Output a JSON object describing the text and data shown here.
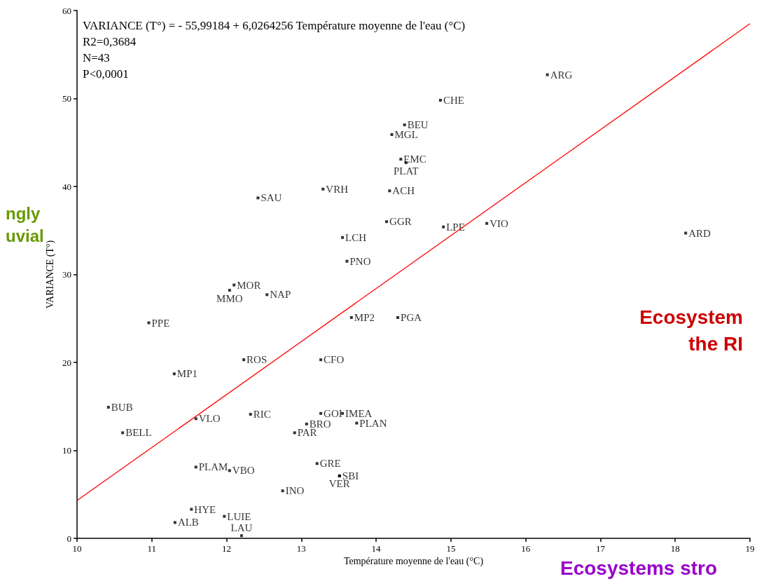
{
  "chart_data": {
    "type": "scatter",
    "xlabel": "Température moyenne de l'eau (°C)",
    "ylabel": "VARIANCE (T°)",
    "xlim": [
      10,
      19
    ],
    "xticks": [
      10,
      11,
      12,
      13,
      14,
      15,
      16,
      17,
      18,
      19
    ],
    "ylim": [
      0,
      60
    ],
    "yticks": [
      0,
      10,
      20,
      30,
      40,
      50,
      60
    ],
    "grid": false,
    "marker": "square",
    "annotations": [
      "VARIANCE (T°) = - 55,99184 + 6,0264256 Température moyenne de l'eau (°C)",
      "R2=0,3684",
      "N=43",
      "P<0,0001",
      "ngly",
      "uvial",
      "Ecosystem",
      "the RI",
      "Ecosystems stro"
    ],
    "series": [
      {
        "type": "scatter",
        "color": "#000000",
        "x": [
          16.29,
          14.86,
          14.38,
          14.21,
          14.33,
          14.4,
          13.29,
          14.18,
          12.42,
          14.14,
          14.9,
          15.48,
          18.14,
          13.55,
          13.61,
          12.1,
          12.04,
          12.54,
          10.96,
          13.67,
          14.29,
          12.23,
          13.26,
          11.3,
          10.42,
          11.59,
          12.32,
          13.26,
          13.55,
          13.07,
          13.74,
          10.61,
          12.91,
          13.21,
          13.51,
          13.51,
          11.59,
          12.04,
          12.75,
          11.53,
          11.97,
          11.31,
          12.2
        ],
        "values": [
          52.7,
          49.8,
          47.0,
          45.9,
          43.1,
          42.7,
          39.7,
          39.5,
          38.7,
          36.0,
          35.4,
          35.8,
          34.7,
          34.2,
          31.5,
          28.8,
          28.2,
          27.7,
          24.5,
          25.1,
          25.1,
          20.3,
          20.3,
          18.7,
          14.9,
          13.6,
          14.1,
          14.2,
          14.2,
          13.0,
          13.1,
          12.0,
          12.0,
          8.5,
          7.1,
          7.1,
          8.1,
          7.7,
          5.4,
          3.3,
          2.5,
          1.8,
          0.3
        ],
        "value_labels": [
          "ARG",
          "CHE",
          "BEU",
          "MGL",
          "EMC",
          "PLAT",
          "VRH",
          "ACH",
          "SAU",
          "GGR",
          "LPE",
          "VIO",
          "ARD",
          "LCH",
          "PNO",
          "MOR",
          "MMO",
          "NAP",
          "PPE",
          "MP2",
          "PGA",
          "ROS",
          "CFO",
          "MP1",
          "BUB",
          "VLO",
          "RIC",
          "GOI",
          "IMEA",
          "BRO",
          "PLAN",
          "BELL",
          "PAR",
          "GRE",
          "SBI",
          "VER",
          "PLAM",
          "VBO",
          "INO",
          "HYE",
          "LUIE",
          "ALB",
          "LAU"
        ]
      },
      {
        "type": "line",
        "color": "#ff0000",
        "marker": "none",
        "line_style": "solid",
        "x": [
          10,
          19
        ],
        "values": [
          4.3,
          58.5
        ]
      }
    ]
  }
}
